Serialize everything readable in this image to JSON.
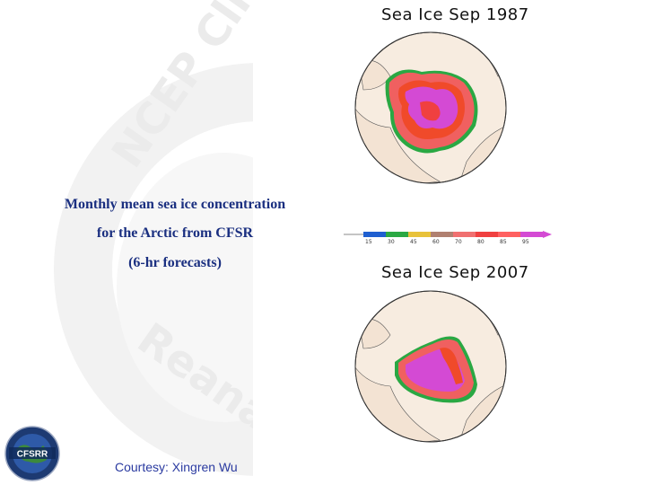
{
  "caption": {
    "line1": "Monthly mean sea ice concentration",
    "line2": "for the Arctic from CFSR",
    "line3": "(6-hr forecasts)"
  },
  "courtesy": "Courtesy: Xingren Wu",
  "watermark": {
    "text_top": "NCEP Clim",
    "text_bottom": "Reanalys"
  },
  "logo": {
    "label": "CFSRR"
  },
  "maps": [
    {
      "title": "Sea Ice Sep 1987"
    },
    {
      "title": "Sea Ice Sep 2007"
    }
  ],
  "colorbar": {
    "ticks": [
      "15",
      "30",
      "45",
      "60",
      "70",
      "80",
      "85",
      "95"
    ],
    "colors": [
      "#1f5fd0",
      "#2aa843",
      "#e8c23a",
      "#b08070",
      "#f07070",
      "#f04040",
      "#ff6060",
      "#d44ad4"
    ]
  }
}
